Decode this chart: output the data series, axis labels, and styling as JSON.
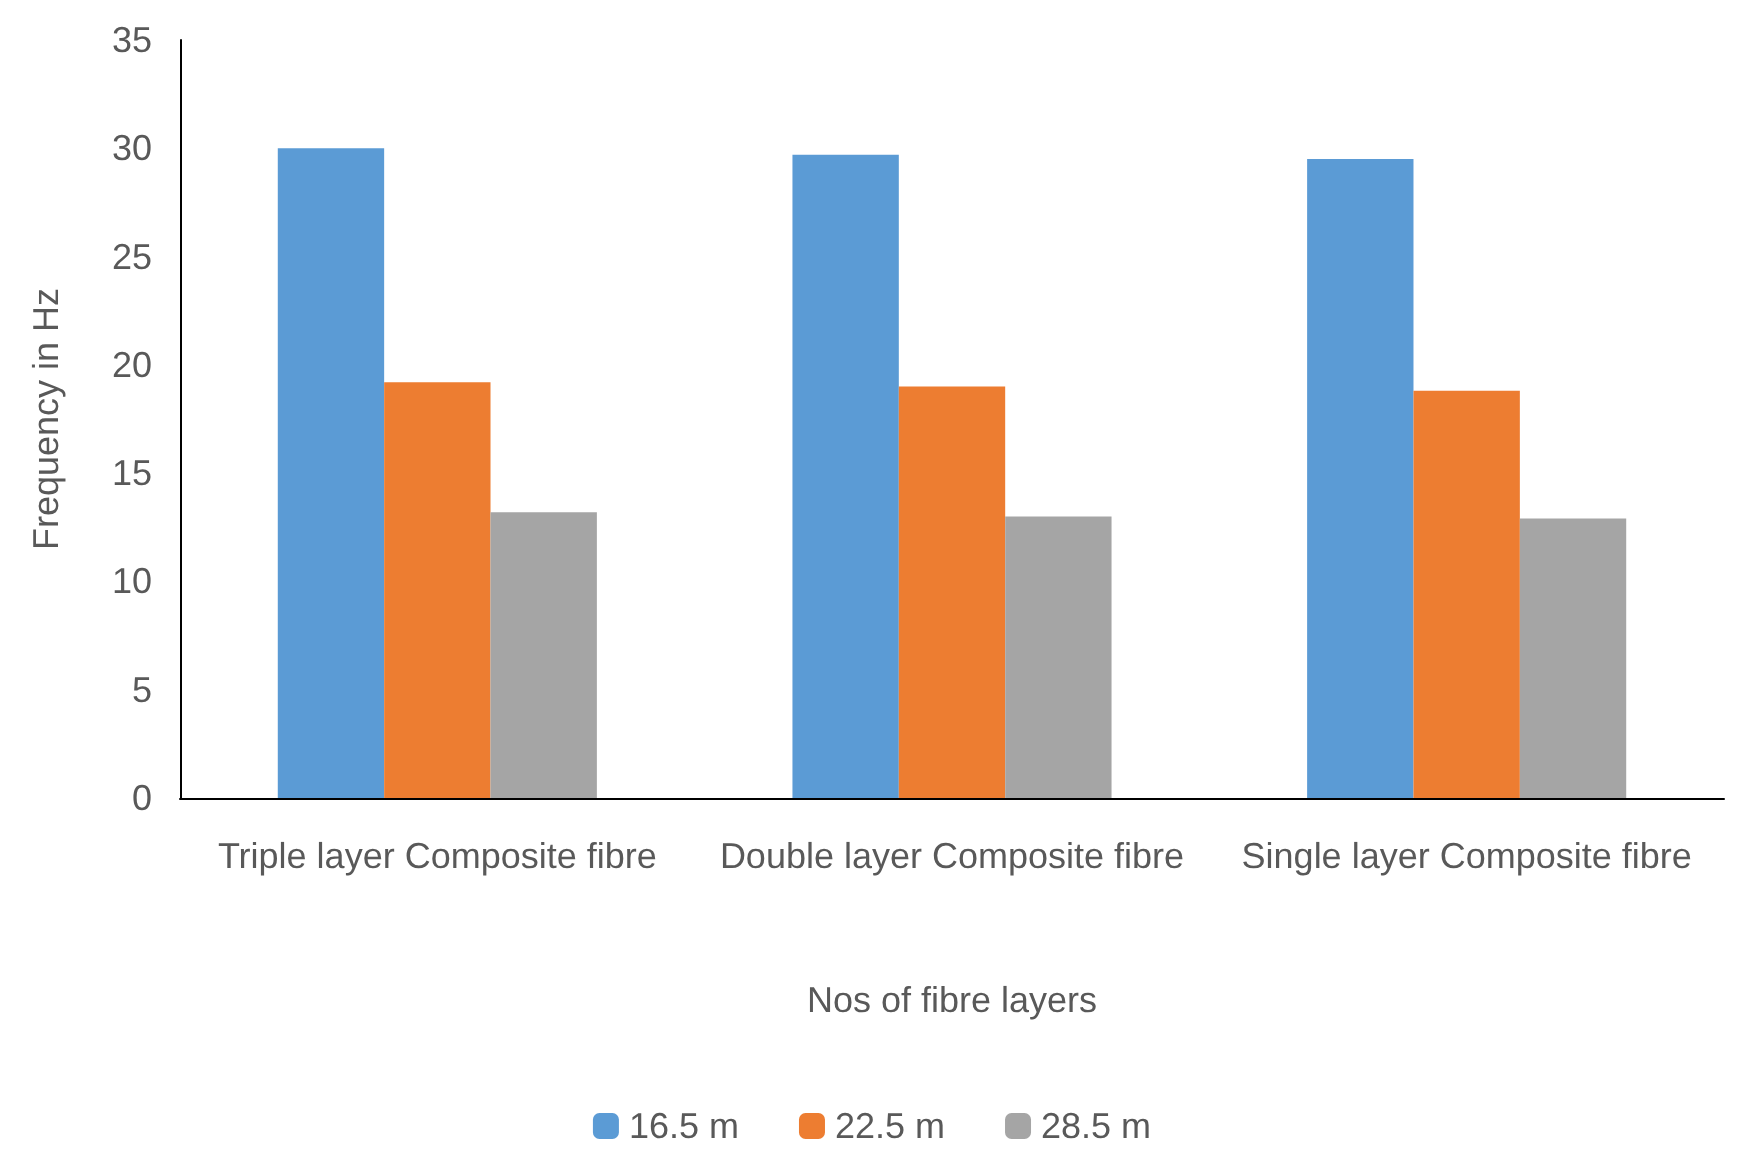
{
  "chart_data": {
    "type": "bar",
    "xlabel": "Nos of fibre layers",
    "ylabel": "Frequency in Hz",
    "categories": [
      "Triple layer Composite fibre",
      "Double layer Composite fibre",
      "Single layer Composite fibre"
    ],
    "series": [
      {
        "name": "16.5 m",
        "color": "#5b9bd5",
        "values": [
          30.0,
          29.7,
          29.5
        ]
      },
      {
        "name": "22.5 m",
        "color": "#ed7d31",
        "values": [
          19.2,
          19.0,
          18.8
        ]
      },
      {
        "name": "28.5 m",
        "color": "#a5a5a5",
        "values": [
          13.2,
          13.0,
          12.9
        ]
      }
    ],
    "ylim": [
      0,
      35
    ],
    "yticks": [
      0,
      5,
      10,
      15,
      20,
      25,
      30,
      35
    ],
    "grid": false,
    "legend": "bottom"
  }
}
